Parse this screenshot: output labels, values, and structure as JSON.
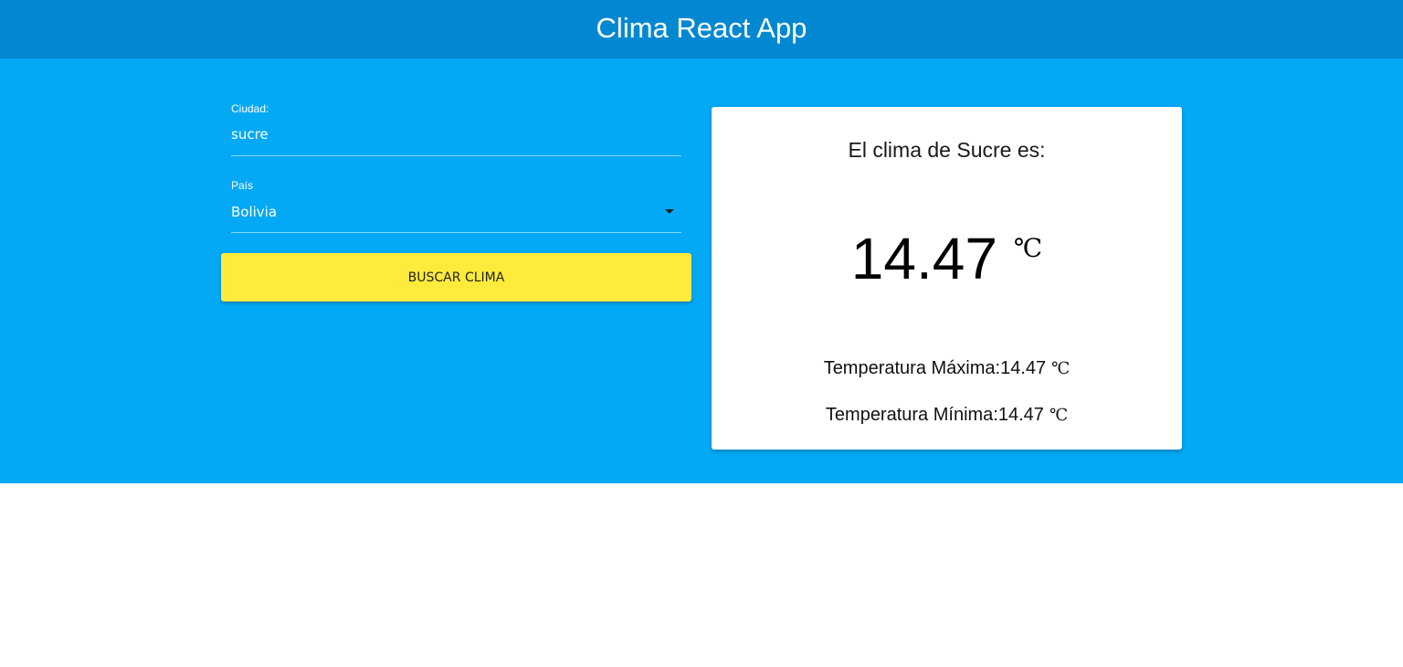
{
  "app": {
    "title": "Clima React App"
  },
  "colors": {
    "navbar": "#0288d1",
    "band": "#03a9f4",
    "button": "#ffeb3b",
    "card": "#ffffff"
  },
  "form": {
    "city": {
      "label": "Ciudad:",
      "value": "sucre"
    },
    "country": {
      "label": "País",
      "selected": "Bolivia",
      "icon": "caret-down-icon"
    },
    "submit_label": "BUSCAR CLIMA"
  },
  "result": {
    "title": "El clima de Sucre es:",
    "temperature": "14.47",
    "unit": "℃",
    "max_label": "Temperatura Máxima:",
    "max_value": "14.47",
    "min_label": "Temperatura Mínima:",
    "min_value": "14.47"
  }
}
